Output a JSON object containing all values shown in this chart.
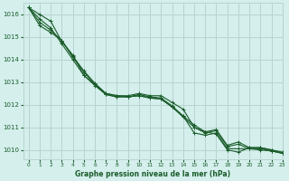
{
  "title": "Graphe pression niveau de la mer (hPa)",
  "background_color": "#d4efec",
  "grid_color": "#b8d4d0",
  "line_color": "#1a5c2a",
  "xlim": [
    -0.5,
    23
  ],
  "ylim": [
    1009.6,
    1016.5
  ],
  "yticks": [
    1010,
    1011,
    1012,
    1013,
    1014,
    1015,
    1016
  ],
  "xticks": [
    0,
    1,
    2,
    3,
    4,
    5,
    6,
    7,
    8,
    9,
    10,
    11,
    12,
    13,
    14,
    15,
    16,
    17,
    18,
    19,
    20,
    21,
    22,
    23
  ],
  "series": [
    [
      1016.3,
      1016.0,
      1015.7,
      1014.8,
      1014.2,
      1013.3,
      1012.9,
      1012.5,
      1012.4,
      1012.4,
      1012.5,
      1012.4,
      1012.4,
      1012.1,
      1011.8,
      1011.0,
      1010.8,
      1010.7,
      1010.0,
      1009.9,
      1010.1,
      1010.1,
      1010.0,
      1009.9
    ],
    [
      1016.3,
      1015.8,
      1015.4,
      1014.7,
      1014.0,
      1013.3,
      1012.85,
      1012.45,
      1012.35,
      1012.35,
      1012.45,
      1012.35,
      1012.3,
      1011.95,
      1011.5,
      1010.75,
      1010.65,
      1010.75,
      1010.05,
      1010.05,
      1010.05,
      1010.0,
      1009.95,
      1009.85
    ],
    [
      1016.3,
      1015.65,
      1015.3,
      1014.85,
      1014.1,
      1013.45,
      1012.9,
      1012.45,
      1012.35,
      1012.35,
      1012.4,
      1012.3,
      1012.25,
      1011.9,
      1011.45,
      1011.0,
      1010.75,
      1010.85,
      1010.15,
      1010.25,
      1010.05,
      1010.05,
      1009.95,
      1009.85
    ],
    [
      1016.3,
      1015.5,
      1015.2,
      1014.85,
      1014.15,
      1013.5,
      1012.95,
      1012.5,
      1012.4,
      1012.35,
      1012.4,
      1012.3,
      1012.25,
      1011.9,
      1011.5,
      1011.1,
      1010.8,
      1010.9,
      1010.2,
      1010.35,
      1010.1,
      1010.1,
      1010.0,
      1009.85
    ]
  ]
}
